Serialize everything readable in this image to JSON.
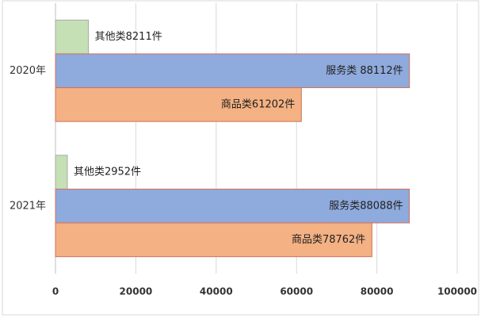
{
  "chart_data": {
    "type": "hbar",
    "categories": [
      "2020年",
      "2021年"
    ],
    "series": [
      {
        "color": "#c5e0b4",
        "values": [
          8211,
          2952
        ],
        "value_labels": [
          "其他类8211件",
          "其他类2952件"
        ]
      },
      {
        "color": "#8faadc",
        "values": [
          88112,
          88088
        ],
        "value_labels": [
          "服务类 88112件",
          "服务类88088件"
        ]
      },
      {
        "color": "#f4b183",
        "values": [
          61202,
          78762
        ],
        "value_labels": [
          "商品类61202件",
          "商品类78762件"
        ]
      }
    ],
    "xlim": [
      0,
      100000
    ],
    "xticks": [
      0,
      20000,
      40000,
      60000,
      80000,
      100000
    ],
    "grid": true
  }
}
